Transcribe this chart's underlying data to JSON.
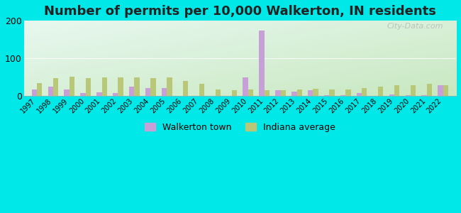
{
  "title": "Number of permits per 10,000 Walkerton, IN residents",
  "years": [
    1997,
    1998,
    1999,
    2000,
    2001,
    2002,
    2003,
    2004,
    2005,
    2006,
    2007,
    2008,
    2009,
    2010,
    2011,
    2012,
    2013,
    2014,
    2015,
    2016,
    2017,
    2018,
    2019,
    2020,
    2021,
    2022
  ],
  "walkerton": [
    18,
    25,
    18,
    8,
    10,
    8,
    25,
    22,
    22,
    0,
    0,
    0,
    0,
    50,
    175,
    15,
    12,
    15,
    3,
    3,
    8,
    0,
    5,
    3,
    3,
    28
  ],
  "indiana": [
    35,
    48,
    52,
    48,
    50,
    50,
    50,
    48,
    50,
    40,
    32,
    18,
    15,
    18,
    15,
    15,
    18,
    20,
    18,
    18,
    22,
    25,
    28,
    28,
    32,
    28
  ],
  "walkerton_color": "#c8a0d8",
  "indiana_color": "#b8c878",
  "background_outer": "#00e8e8",
  "background_inner_topleft": "#e8f8f0",
  "background_inner_bottomright": "#c8e8c0",
  "ylim": [
    0,
    200
  ],
  "yticks": [
    0,
    100,
    200
  ],
  "title_fontsize": 13,
  "watermark": "City-Data.com",
  "legend_walkerton": "Walkerton town",
  "legend_indiana": "Indiana average"
}
